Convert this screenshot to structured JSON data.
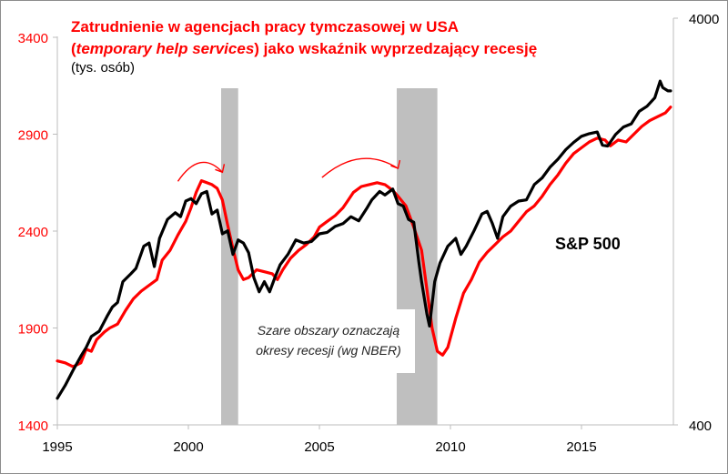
{
  "chart_data": {
    "type": "line",
    "title_line1": "Zatrudnienie w agencjach pracy tymczasowej w USA",
    "title_line2_italic": "temporary help services",
    "title_line2_open": "(",
    "title_line2_rest": ") jako wskaźnik wyprzedzający recesję",
    "subtitle": "(tys. osób)",
    "xlabel": "",
    "x_ticks": [
      "1995",
      "2000",
      "2005",
      "2010",
      "2015"
    ],
    "x_range": [
      1995,
      2018.5
    ],
    "left_axis": {
      "ticks": [
        "1400",
        "1900",
        "2400",
        "2900",
        "3400"
      ],
      "range": [
        1400,
        3400
      ],
      "color": "#ff0000"
    },
    "right_axis": {
      "ticks": [
        "400",
        "4000"
      ],
      "range": [
        400,
        4000
      ],
      "scale": "log",
      "color": "#000000"
    },
    "recessions": [
      {
        "start": 2001.25,
        "end": 2001.9
      },
      {
        "start": 2007.95,
        "end": 2009.5
      }
    ],
    "annotation_note_line1": "Szare obszary oznaczają",
    "annotation_note_line2": "okresy recesji (wg NBER)",
    "series_label": "S&P 500",
    "series": [
      {
        "name": "Temporary help services (tys. osób)",
        "axis": "left",
        "color": "#ff0000",
        "points": [
          [
            1995.0,
            1730
          ],
          [
            1995.3,
            1720
          ],
          [
            1995.6,
            1700
          ],
          [
            1995.9,
            1720
          ],
          [
            1996.1,
            1790
          ],
          [
            1996.3,
            1780
          ],
          [
            1996.5,
            1840
          ],
          [
            1996.8,
            1880
          ],
          [
            1997.0,
            1900
          ],
          [
            1997.3,
            1920
          ],
          [
            1997.6,
            1990
          ],
          [
            1997.9,
            2050
          ],
          [
            1998.2,
            2090
          ],
          [
            1998.5,
            2120
          ],
          [
            1998.8,
            2150
          ],
          [
            1999.0,
            2250
          ],
          [
            1999.3,
            2300
          ],
          [
            1999.6,
            2380
          ],
          [
            1999.9,
            2450
          ],
          [
            2000.1,
            2520
          ],
          [
            2000.3,
            2600
          ],
          [
            2000.5,
            2660
          ],
          [
            2000.7,
            2650
          ],
          [
            2000.9,
            2640
          ],
          [
            2001.1,
            2620
          ],
          [
            2001.3,
            2560
          ],
          [
            2001.5,
            2430
          ],
          [
            2001.7,
            2310
          ],
          [
            2001.9,
            2200
          ],
          [
            2002.1,
            2150
          ],
          [
            2002.3,
            2160
          ],
          [
            2002.6,
            2200
          ],
          [
            2002.9,
            2190
          ],
          [
            2003.2,
            2180
          ],
          [
            2003.4,
            2150
          ],
          [
            2003.6,
            2200
          ],
          [
            2003.9,
            2260
          ],
          [
            2004.2,
            2300
          ],
          [
            2004.5,
            2330
          ],
          [
            2004.8,
            2370
          ],
          [
            2005.0,
            2420
          ],
          [
            2005.3,
            2450
          ],
          [
            2005.6,
            2480
          ],
          [
            2005.9,
            2520
          ],
          [
            2006.1,
            2560
          ],
          [
            2006.3,
            2600
          ],
          [
            2006.6,
            2630
          ],
          [
            2006.9,
            2640
          ],
          [
            2007.2,
            2650
          ],
          [
            2007.5,
            2640
          ],
          [
            2007.8,
            2610
          ],
          [
            2008.0,
            2580
          ],
          [
            2008.3,
            2530
          ],
          [
            2008.6,
            2420
          ],
          [
            2008.9,
            2300
          ],
          [
            2009.1,
            2100
          ],
          [
            2009.3,
            1900
          ],
          [
            2009.5,
            1780
          ],
          [
            2009.7,
            1760
          ],
          [
            2009.9,
            1800
          ],
          [
            2010.2,
            1950
          ],
          [
            2010.5,
            2080
          ],
          [
            2010.8,
            2150
          ],
          [
            2011.1,
            2240
          ],
          [
            2011.4,
            2290
          ],
          [
            2011.7,
            2330
          ],
          [
            2012.0,
            2370
          ],
          [
            2012.3,
            2400
          ],
          [
            2012.6,
            2450
          ],
          [
            2012.9,
            2500
          ],
          [
            2013.2,
            2530
          ],
          [
            2013.5,
            2580
          ],
          [
            2013.8,
            2640
          ],
          [
            2014.1,
            2690
          ],
          [
            2014.4,
            2750
          ],
          [
            2014.7,
            2800
          ],
          [
            2015.0,
            2830
          ],
          [
            2015.3,
            2860
          ],
          [
            2015.6,
            2880
          ],
          [
            2015.9,
            2870
          ],
          [
            2016.1,
            2840
          ],
          [
            2016.4,
            2870
          ],
          [
            2016.7,
            2860
          ],
          [
            2017.0,
            2900
          ],
          [
            2017.3,
            2940
          ],
          [
            2017.6,
            2970
          ],
          [
            2017.9,
            2990
          ],
          [
            2018.2,
            3010
          ],
          [
            2018.4,
            3040
          ]
        ]
      },
      {
        "name": "S&P 500",
        "axis": "right",
        "color": "#000000",
        "points": [
          [
            1995.0,
            465
          ],
          [
            1995.3,
            500
          ],
          [
            1995.6,
            545
          ],
          [
            1995.9,
            590
          ],
          [
            1996.1,
            620
          ],
          [
            1996.3,
            660
          ],
          [
            1996.6,
            680
          ],
          [
            1996.9,
            740
          ],
          [
            1997.1,
            780
          ],
          [
            1997.3,
            800
          ],
          [
            1997.5,
            900
          ],
          [
            1997.8,
            940
          ],
          [
            1998.0,
            970
          ],
          [
            1998.3,
            1100
          ],
          [
            1998.5,
            1120
          ],
          [
            1998.7,
            980
          ],
          [
            1998.9,
            1150
          ],
          [
            1999.2,
            1280
          ],
          [
            1999.5,
            1330
          ],
          [
            1999.7,
            1300
          ],
          [
            1999.9,
            1420
          ],
          [
            2000.1,
            1440
          ],
          [
            2000.3,
            1400
          ],
          [
            2000.5,
            1480
          ],
          [
            2000.7,
            1500
          ],
          [
            2000.9,
            1320
          ],
          [
            2001.1,
            1350
          ],
          [
            2001.3,
            1180
          ],
          [
            2001.5,
            1200
          ],
          [
            2001.7,
            1050
          ],
          [
            2001.9,
            1140
          ],
          [
            2002.1,
            1120
          ],
          [
            2002.3,
            1060
          ],
          [
            2002.5,
            920
          ],
          [
            2002.7,
            850
          ],
          [
            2002.9,
            900
          ],
          [
            2003.1,
            850
          ],
          [
            2003.3,
            920
          ],
          [
            2003.5,
            990
          ],
          [
            2003.8,
            1050
          ],
          [
            2004.1,
            1140
          ],
          [
            2004.4,
            1120
          ],
          [
            2004.7,
            1130
          ],
          [
            2005.0,
            1180
          ],
          [
            2005.3,
            1190
          ],
          [
            2005.6,
            1230
          ],
          [
            2005.9,
            1250
          ],
          [
            2006.2,
            1300
          ],
          [
            2006.5,
            1270
          ],
          [
            2006.8,
            1360
          ],
          [
            2007.0,
            1430
          ],
          [
            2007.3,
            1500
          ],
          [
            2007.5,
            1470
          ],
          [
            2007.8,
            1520
          ],
          [
            2008.0,
            1400
          ],
          [
            2008.2,
            1380
          ],
          [
            2008.4,
            1280
          ],
          [
            2008.6,
            1260
          ],
          [
            2008.8,
            1000
          ],
          [
            2008.9,
            900
          ],
          [
            2009.1,
            750
          ],
          [
            2009.2,
            700
          ],
          [
            2009.4,
            900
          ],
          [
            2009.6,
            1000
          ],
          [
            2009.9,
            1100
          ],
          [
            2010.2,
            1150
          ],
          [
            2010.4,
            1050
          ],
          [
            2010.6,
            1100
          ],
          [
            2010.9,
            1200
          ],
          [
            2011.2,
            1320
          ],
          [
            2011.4,
            1340
          ],
          [
            2011.6,
            1250
          ],
          [
            2011.8,
            1150
          ],
          [
            2012.0,
            1300
          ],
          [
            2012.3,
            1380
          ],
          [
            2012.6,
            1420
          ],
          [
            2012.9,
            1430
          ],
          [
            2013.2,
            1560
          ],
          [
            2013.5,
            1620
          ],
          [
            2013.8,
            1720
          ],
          [
            2014.1,
            1800
          ],
          [
            2014.4,
            1900
          ],
          [
            2014.7,
            1980
          ],
          [
            2015.0,
            2050
          ],
          [
            2015.3,
            2080
          ],
          [
            2015.6,
            2100
          ],
          [
            2015.8,
            1950
          ],
          [
            2016.0,
            1940
          ],
          [
            2016.3,
            2070
          ],
          [
            2016.6,
            2160
          ],
          [
            2016.9,
            2200
          ],
          [
            2017.2,
            2360
          ],
          [
            2017.5,
            2430
          ],
          [
            2017.8,
            2550
          ],
          [
            2018.0,
            2800
          ],
          [
            2018.1,
            2700
          ],
          [
            2018.3,
            2650
          ],
          [
            2018.4,
            2650
          ]
        ]
      }
    ],
    "arrows": [
      {
        "from_year": 1999.6,
        "to_year": 2001.3,
        "axis": "left",
        "level": 2760
      },
      {
        "from_year": 2005.1,
        "to_year": 2008.0,
        "axis": "left",
        "level": 2780
      }
    ]
  }
}
